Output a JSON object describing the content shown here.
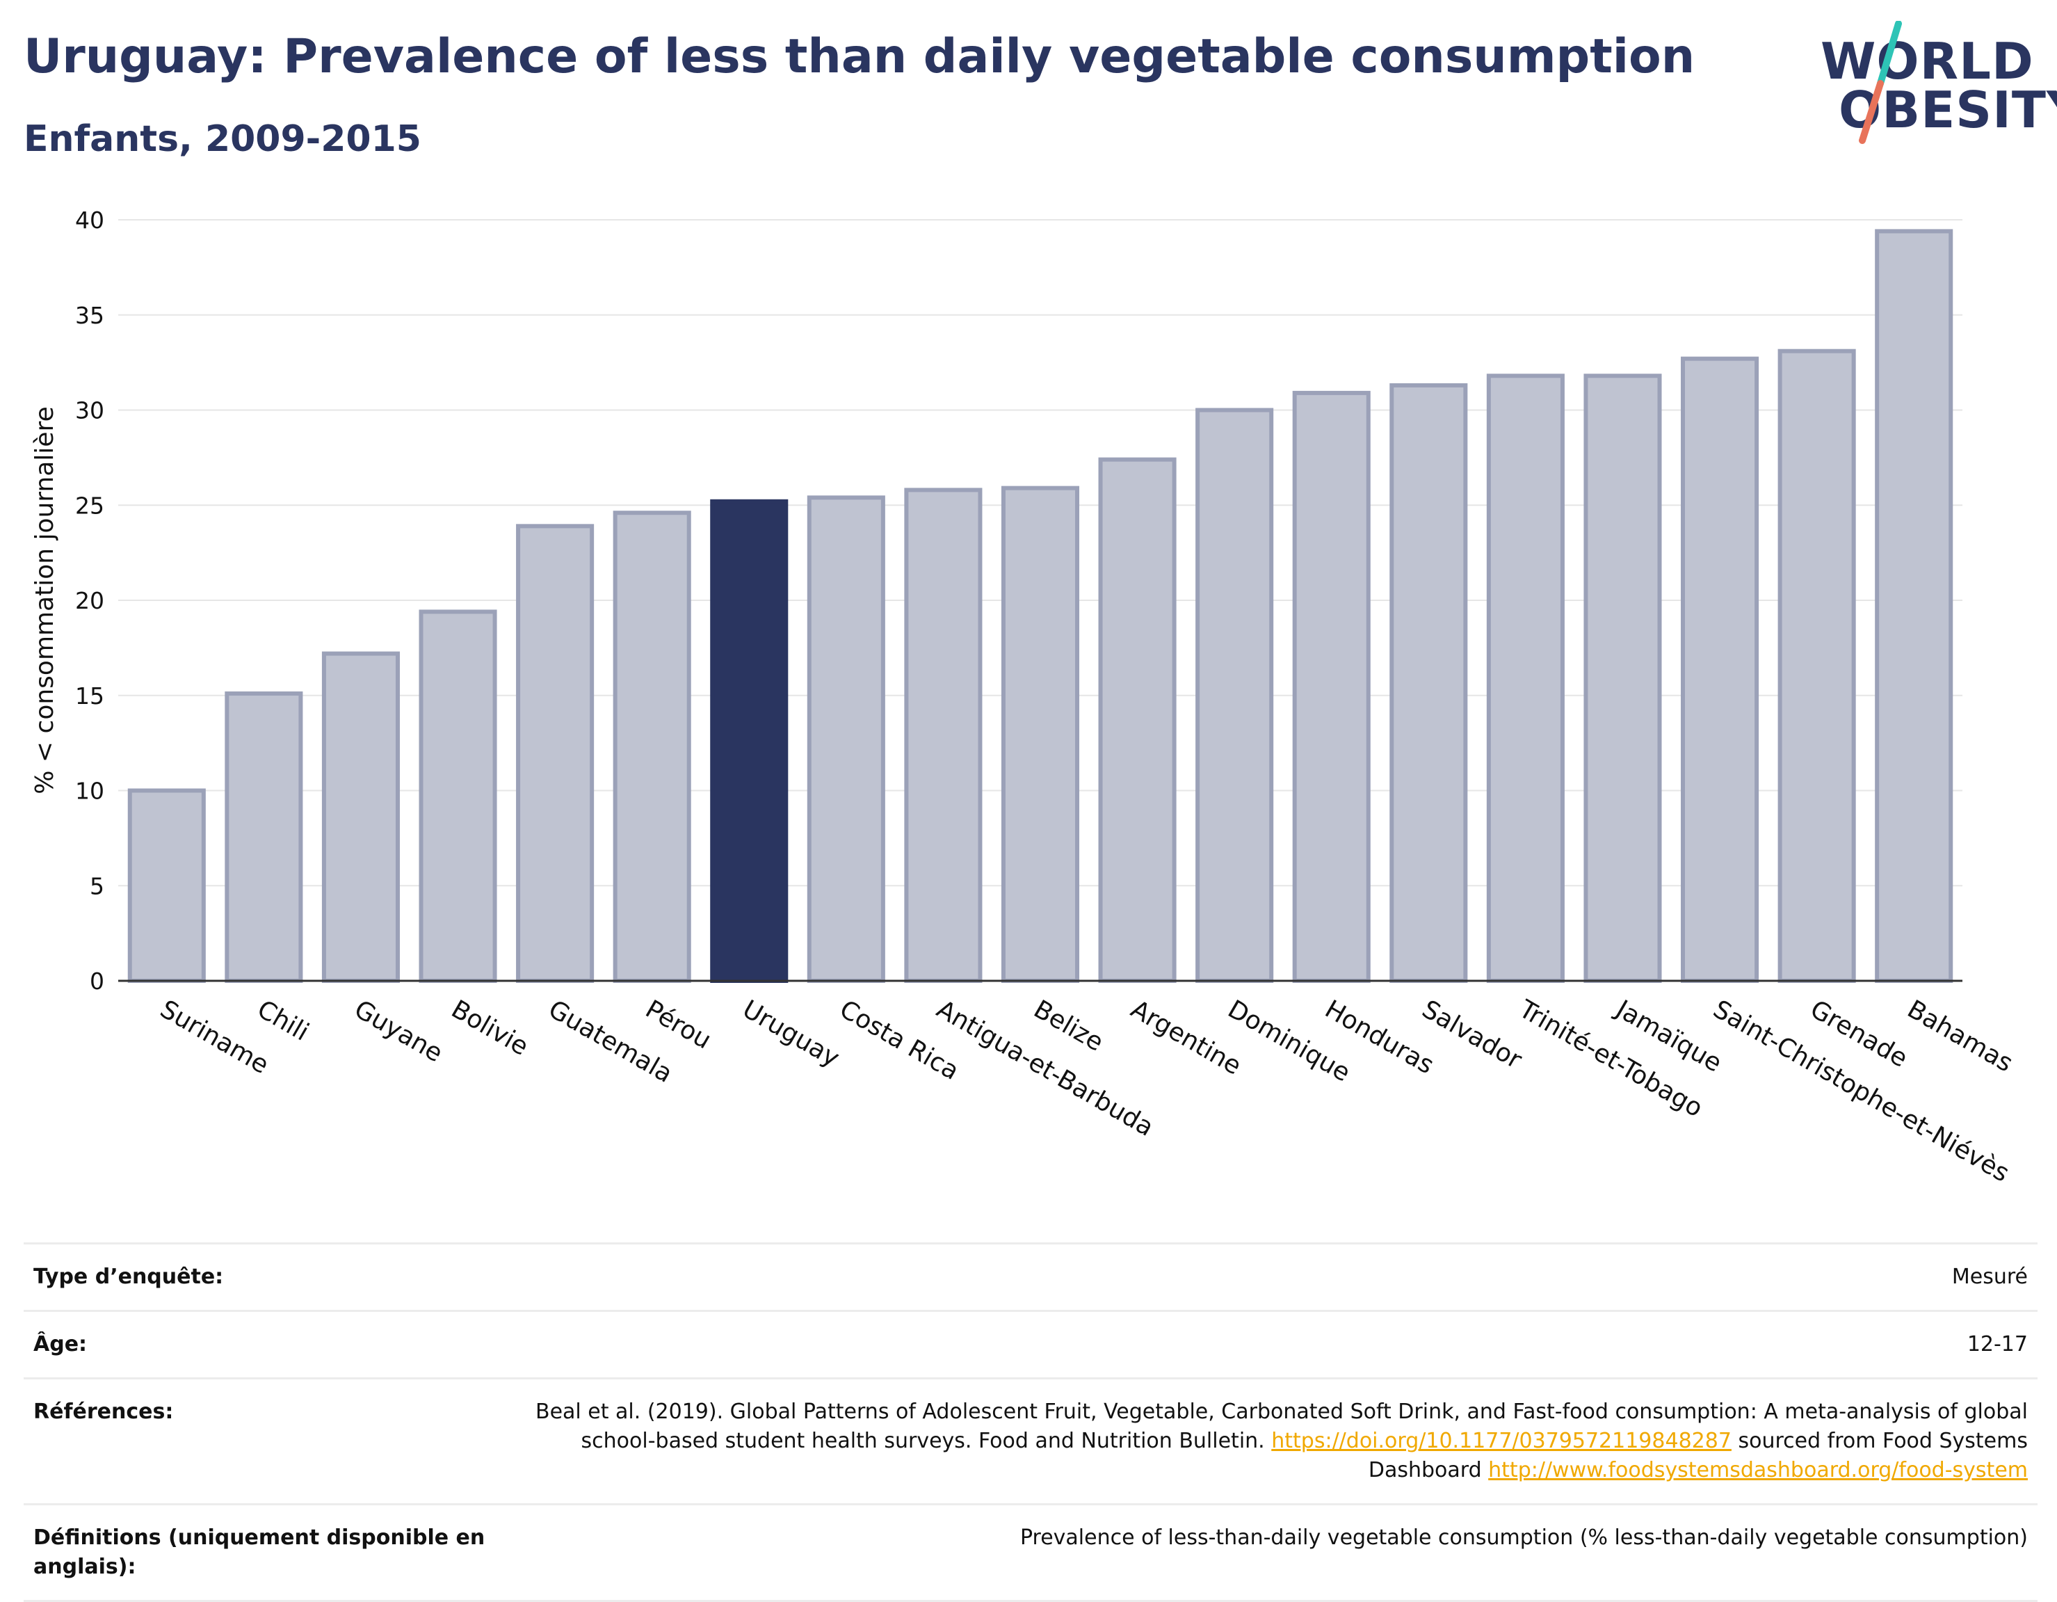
{
  "header": {
    "title": "Uruguay: Prevalence of less than daily vegetable consumption",
    "subtitle": "Enfants, 2009-2015"
  },
  "logo": {
    "line1": "WORLD",
    "line2": "OBESITY",
    "colors": [
      "#2ec4b6",
      "#e8735a"
    ]
  },
  "chart_data": {
    "type": "bar",
    "ylabel": "% < consommation journalière",
    "ylim": [
      0,
      40
    ],
    "yticks": [
      0,
      5,
      10,
      15,
      20,
      25,
      30,
      35,
      40
    ],
    "grid": true,
    "categories": [
      "Suriname",
      "Chili",
      "Guyane",
      "Bolivie",
      "Guatemala",
      "Pérou",
      "Uruguay",
      "Costa Rica",
      "Antigua-et-Barbuda",
      "Belize",
      "Argentine",
      "Dominique",
      "Honduras",
      "Salvador",
      "Trinité-et-Tobago",
      "Jamaïque",
      "Saint-Christophe-et-Niévès",
      "Grenade",
      "Bahamas"
    ],
    "values": [
      10.0,
      15.1,
      17.2,
      19.4,
      23.9,
      24.6,
      25.2,
      25.4,
      25.8,
      25.9,
      27.4,
      30.0,
      30.9,
      31.3,
      31.8,
      31.8,
      32.7,
      33.1,
      39.4
    ],
    "highlight": "Uruguay",
    "colors": {
      "bar": "#bfc3d1",
      "bar_border": "#9ba1b8",
      "highlight": "#2a3560"
    }
  },
  "meta": [
    {
      "key": "Type d’enquête:",
      "value": "Mesuré"
    },
    {
      "key": "Âge:",
      "value": "12-17"
    },
    {
      "key": "Références:",
      "value_parts": [
        "Beal et al. (2019). Global Patterns of Adolescent Fruit, Vegetable, Carbonated Soft Drink, and Fast-food consumption: A meta-analysis of global school-based student health surveys. Food and Nutrition Bulletin. ",
        "https://doi.org/10.1177/0379572119848287",
        " sourced from Food Systems Dashboard ",
        "http://www.foodsystemsdashboard.org/food-system"
      ]
    },
    {
      "key": "Définitions (uniquement disponible en anglais):",
      "value": "Prevalence of less-than-daily vegetable consumption (% less-than-daily vegetable consumption)"
    }
  ]
}
